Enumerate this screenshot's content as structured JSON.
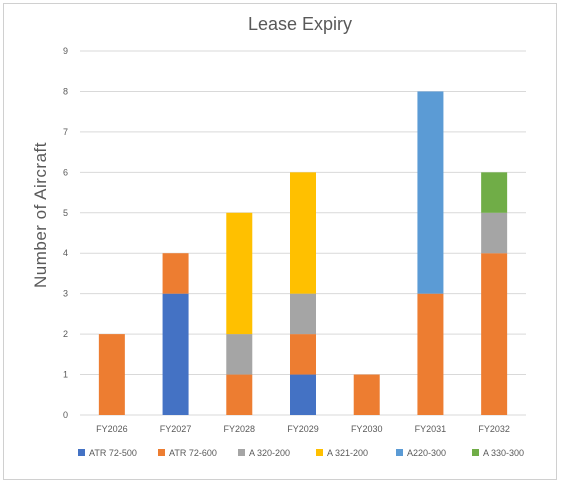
{
  "chart_data": {
    "type": "bar",
    "stacked": true,
    "title": "Lease Expiry",
    "xlabel": "",
    "ylabel": "Number of Aircraft",
    "ylim": [
      0,
      9
    ],
    "yticks": [
      0,
      1,
      2,
      3,
      4,
      5,
      6,
      7,
      8,
      9
    ],
    "grid": true,
    "legend_position": "bottom",
    "categories": [
      "FY2026",
      "FY2027",
      "FY2028",
      "FY2029",
      "FY2030",
      "FY2031",
      "FY2032"
    ],
    "series": [
      {
        "name": "ATR 72-500",
        "color": "#4472c4",
        "values": [
          0,
          3,
          0,
          1,
          0,
          0,
          0
        ]
      },
      {
        "name": "ATR 72-600",
        "color": "#ed7d31",
        "values": [
          2,
          1,
          1,
          1,
          1,
          3,
          4
        ]
      },
      {
        "name": "A 320-200",
        "color": "#a5a5a5",
        "values": [
          0,
          0,
          1,
          1,
          0,
          0,
          1
        ]
      },
      {
        "name": "A 321-200",
        "color": "#ffc000",
        "values": [
          0,
          0,
          3,
          3,
          0,
          0,
          0
        ]
      },
      {
        "name": "A220-300",
        "color": "#5b9bd5",
        "values": [
          0,
          0,
          0,
          0,
          0,
          5,
          0
        ]
      },
      {
        "name": "A 330-300",
        "color": "#70ad47",
        "values": [
          0,
          0,
          0,
          0,
          0,
          0,
          1
        ]
      }
    ]
  }
}
